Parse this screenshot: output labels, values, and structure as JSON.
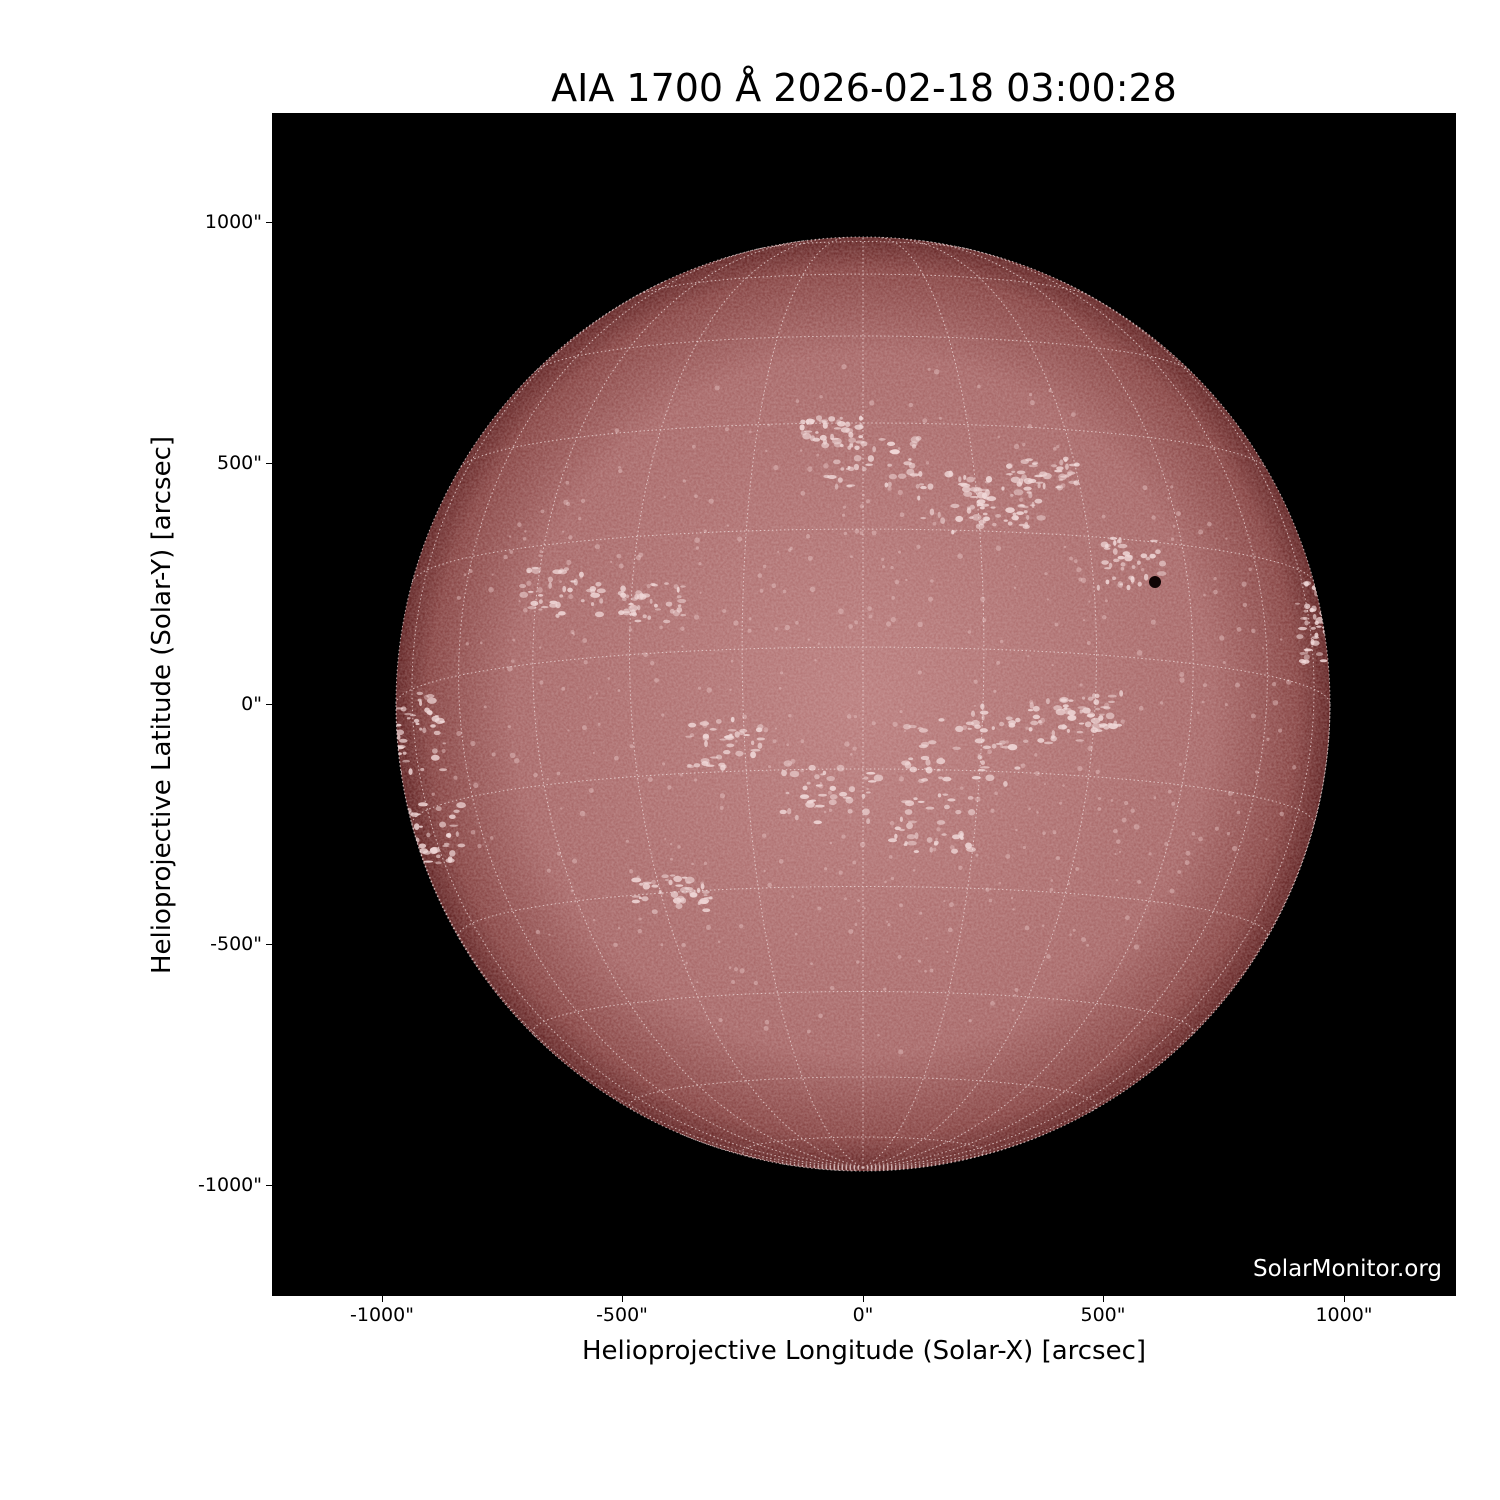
{
  "title": "AIA 1700 Å 2026-02-18 03:00:28",
  "xlabel": "Helioprojective Longitude (Solar-X) [arcsec]",
  "ylabel": "Helioprojective Latitude (Solar-Y) [arcsec]",
  "xticks": [
    "-1000\"",
    "-500\"",
    "0\"",
    "500\"",
    "1000\""
  ],
  "yticks": [
    "1000\"",
    "500\"",
    "0\"",
    "-500\"",
    "-1000\""
  ],
  "credit": "SolarMonitor.org",
  "image": {
    "subject": "solar disk",
    "instrument": "AIA",
    "wavelength": "1700 Å",
    "colormap": "sdoaia1700",
    "grid": "heliographic, dotted"
  },
  "colors": {
    "disk_center": "#b87a7a",
    "disk_limb": "#5e1f1f",
    "background": "#000000",
    "plage": "#f0d8d8"
  }
}
